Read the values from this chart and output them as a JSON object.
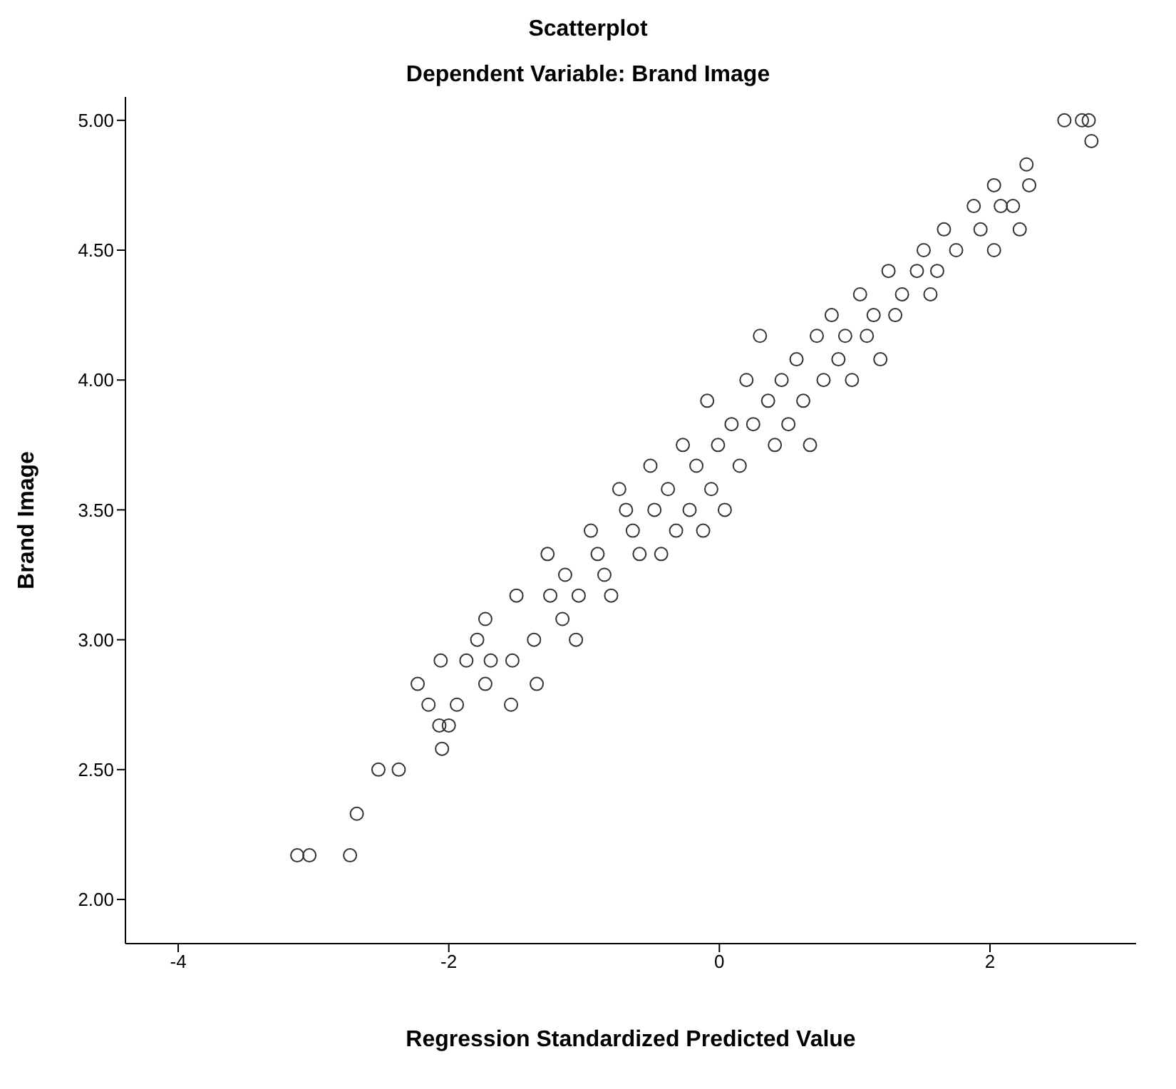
{
  "chart_data": {
    "type": "scatter",
    "title": "Scatterplot",
    "subtitle": "Dependent Variable: Brand Image",
    "xlabel": "Regression Standardized Predicted Value",
    "ylabel": "Brand Image",
    "xlim": [
      -4.39,
      3.08
    ],
    "ylim": [
      1.83,
      5.09
    ],
    "xticks": [
      -4,
      -2,
      0,
      2
    ],
    "yticks": [
      {
        "value": 2,
        "label": "2.00"
      },
      {
        "value": 2.5,
        "label": "2.50"
      },
      {
        "value": 3,
        "label": "3.00"
      },
      {
        "value": 3.5,
        "label": "3.50"
      },
      {
        "value": 4,
        "label": "4.00"
      },
      {
        "value": 4.5,
        "label": "4.50"
      },
      {
        "value": 5,
        "label": "5.00"
      }
    ],
    "grid": false,
    "legend": false,
    "marker": "circle",
    "series": [
      {
        "color": "#333333",
        "x": [
          -3.12,
          -3.03,
          -2.73,
          -2.68,
          -2.52,
          -2.37,
          -2.23,
          -2.15,
          -2.07,
          -2.05,
          -2.06,
          -2.0,
          -1.94,
          -1.87,
          -1.79,
          -1.73,
          -1.73,
          -1.69,
          -1.53,
          -1.54,
          -1.5,
          -1.37,
          -1.35,
          -1.27,
          -1.25,
          -1.16,
          -1.14,
          -1.06,
          -1.04,
          -0.95,
          -0.9,
          -0.85,
          -0.8,
          -0.74,
          -0.69,
          -0.64,
          -0.59,
          -0.51,
          -0.48,
          -0.43,
          -0.38,
          -0.32,
          -0.27,
          -0.22,
          -0.17,
          -0.12,
          -0.09,
          -0.06,
          -0.01,
          0.04,
          0.09,
          0.15,
          0.2,
          0.3,
          0.25,
          0.36,
          0.41,
          0.46,
          0.51,
          0.57,
          0.62,
          0.67,
          0.72,
          0.77,
          0.83,
          0.88,
          0.93,
          0.98,
          1.04,
          1.09,
          1.14,
          1.19,
          1.25,
          1.3,
          1.35,
          1.46,
          1.51,
          1.56,
          1.61,
          1.66,
          1.75,
          1.88,
          1.93,
          2.03,
          2.03,
          2.08,
          2.17,
          2.22,
          2.27,
          2.29,
          2.55,
          2.68,
          2.73,
          2.75
        ],
        "values": [
          2.17,
          2.17,
          2.17,
          2.33,
          2.5,
          2.5,
          2.83,
          2.75,
          2.67,
          2.58,
          2.92,
          2.67,
          2.75,
          2.92,
          3.0,
          3.08,
          2.83,
          2.92,
          2.92,
          2.75,
          3.17,
          3.0,
          2.83,
          3.33,
          3.17,
          3.08,
          3.25,
          3.0,
          3.17,
          3.42,
          3.33,
          3.25,
          3.17,
          3.58,
          3.5,
          3.42,
          3.33,
          3.67,
          3.5,
          3.33,
          3.58,
          3.42,
          3.75,
          3.5,
          3.67,
          3.42,
          3.92,
          3.58,
          3.75,
          3.5,
          3.83,
          3.67,
          4.0,
          4.17,
          3.83,
          3.92,
          3.75,
          4.0,
          3.83,
          4.08,
          3.92,
          3.75,
          4.17,
          4.0,
          4.25,
          4.08,
          4.17,
          4.0,
          4.33,
          4.17,
          4.25,
          4.08,
          4.42,
          4.25,
          4.33,
          4.42,
          4.5,
          4.33,
          4.42,
          4.58,
          4.5,
          4.67,
          4.58,
          4.75,
          4.5,
          4.67,
          4.67,
          4.58,
          4.83,
          4.75,
          5.0,
          5.0,
          5.0,
          4.92
        ]
      }
    ]
  }
}
